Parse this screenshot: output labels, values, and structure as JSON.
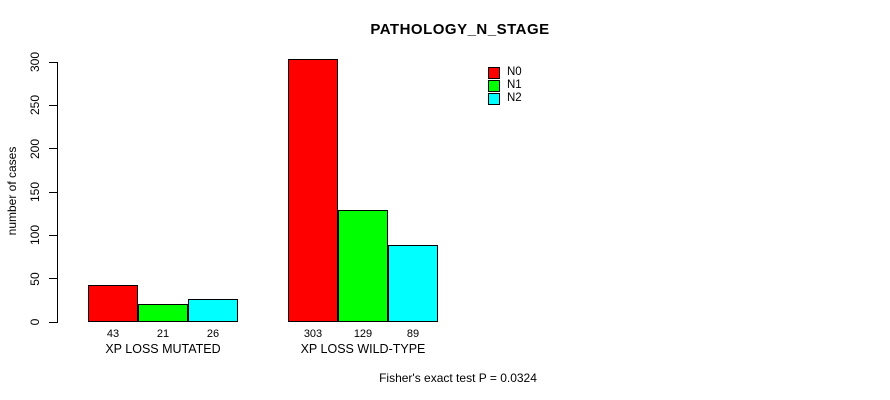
{
  "chart_data": {
    "type": "bar",
    "title": "PATHOLOGY_N_STAGE",
    "ylabel": "number of cases",
    "xlabel": "",
    "caption": "Fisher's exact test P = 0.0324",
    "categories": [
      "XP LOSS MUTATED",
      "XP LOSS WILD-TYPE"
    ],
    "series": [
      {
        "name": "N0",
        "color": "#FF0000",
        "values": [
          43,
          303
        ]
      },
      {
        "name": "N1",
        "color": "#00FF00",
        "values": [
          21,
          129
        ]
      },
      {
        "name": "N2",
        "color": "#00FFFF",
        "values": [
          26,
          89
        ]
      }
    ],
    "bar_value_labels": [
      [
        43,
        21,
        26
      ],
      [
        303,
        129,
        89
      ]
    ],
    "ylim": [
      0,
      300
    ],
    "yticks": [
      0,
      50,
      100,
      150,
      200,
      250,
      300
    ],
    "grid": false,
    "legend_position": "top-right",
    "axis_color": "#000000",
    "bar_border_color": "#000000"
  }
}
